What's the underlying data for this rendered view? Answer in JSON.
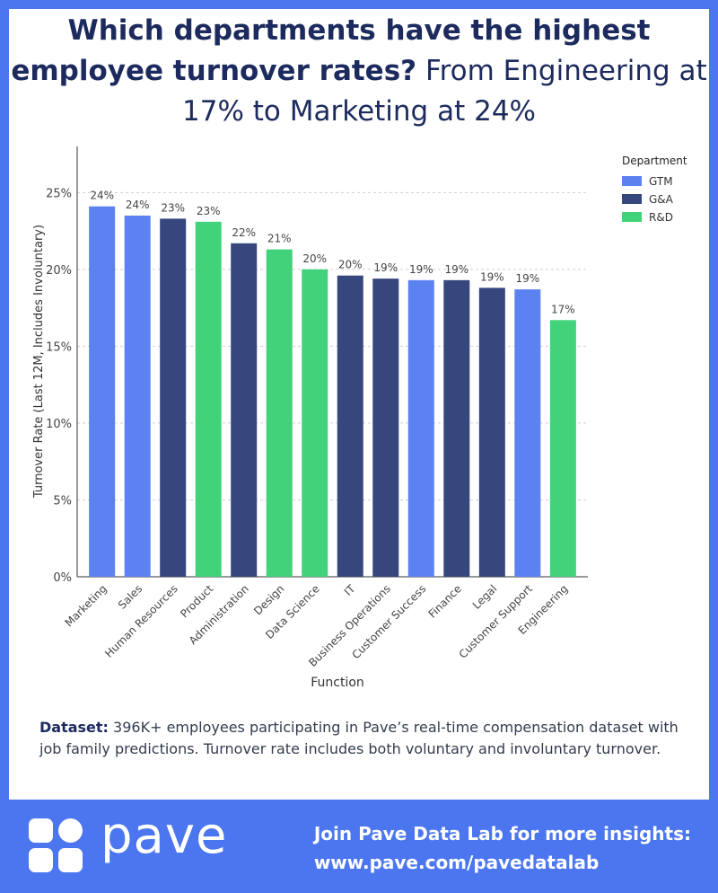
{
  "header": {
    "title_bold": "Which departments have the highest employee turnover rates?",
    "title_light": "From Engineering at 17% to Marketing at 24%"
  },
  "chart_data": {
    "type": "bar",
    "xlabel": "Function",
    "ylabel": "Turnover Rate (Last 12M, Includes Involuntary)",
    "ylim": [
      0,
      28
    ],
    "yticks": [
      0,
      5,
      10,
      15,
      20,
      25
    ],
    "ytick_labels": [
      "0%",
      "5%",
      "10%",
      "15%",
      "20%",
      "25%"
    ],
    "grid": true,
    "legend": {
      "title": "Department",
      "placement": "top-right",
      "entries": [
        {
          "name": "GTM",
          "color": "#5b82f0"
        },
        {
          "name": "G&A",
          "color": "#36477e"
        },
        {
          "name": "R&D",
          "color": "#41d27a"
        }
      ]
    },
    "categories": [
      "Marketing",
      "Sales",
      "Human Resources",
      "Product",
      "Administration",
      "Design",
      "Data Science",
      "IT",
      "Business Operations",
      "Customer Success",
      "Finance",
      "Legal",
      "Customer Support",
      "Engineering"
    ],
    "values": [
      24.1,
      23.5,
      23.3,
      23.1,
      21.7,
      21.3,
      20.0,
      19.6,
      19.4,
      19.3,
      19.3,
      18.8,
      18.7,
      16.7
    ],
    "data_labels": [
      "24%",
      "24%",
      "23%",
      "23%",
      "22%",
      "21%",
      "20%",
      "20%",
      "19%",
      "19%",
      "19%",
      "19%",
      "19%",
      "17%"
    ],
    "groups": [
      "GTM",
      "GTM",
      "G&A",
      "R&D",
      "G&A",
      "R&D",
      "R&D",
      "G&A",
      "G&A",
      "GTM",
      "G&A",
      "G&A",
      "GTM",
      "R&D"
    ]
  },
  "dataset_note": {
    "label": "Dataset:",
    "text": "396K+ employees participating in Pave’s real-time compensation dataset with job family predictions. Turnover rate includes both voluntary and involuntary turnover."
  },
  "footer": {
    "brand": "pave",
    "cta_line1": "Join Pave Data Lab for more insights:",
    "cta_line2": "www.pave.com/pavedatalab"
  }
}
